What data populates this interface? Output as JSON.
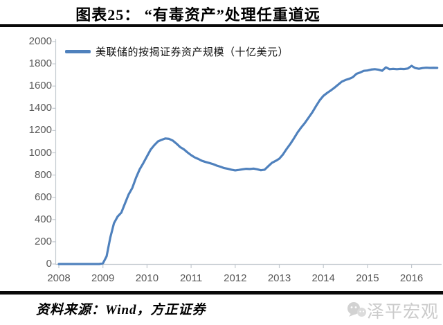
{
  "title": "图表25： “有毒资产”处理任重道远",
  "chart_data": {
    "type": "line",
    "title": "图表25： “有毒资产”处理任重道远",
    "xlabel": "",
    "ylabel": "",
    "grid": false,
    "legend_position": "top-left-inside",
    "ylim": [
      0,
      2000
    ],
    "y_tick_step": 200,
    "y_tick_labels": [
      "0",
      "200",
      "400",
      "600",
      "800",
      "1000",
      "1200",
      "1400",
      "1600",
      "1800",
      "2000"
    ],
    "x_tick_labels": [
      "2008",
      "2009",
      "2010",
      "2011",
      "2012",
      "2013",
      "2014",
      "2015",
      "2016"
    ],
    "series": [
      {
        "name": "美联储的按揭证券资产规模（十亿美元）",
        "color": "#4F81BD",
        "x": [
          2008.0,
          2008.083,
          2008.167,
          2008.25,
          2008.333,
          2008.417,
          2008.5,
          2008.583,
          2008.667,
          2008.75,
          2008.833,
          2008.917,
          2009.0,
          2009.083,
          2009.167,
          2009.25,
          2009.333,
          2009.417,
          2009.5,
          2009.583,
          2009.667,
          2009.75,
          2009.833,
          2009.917,
          2010.0,
          2010.083,
          2010.167,
          2010.25,
          2010.333,
          2010.417,
          2010.5,
          2010.583,
          2010.667,
          2010.75,
          2010.833,
          2010.917,
          2011.0,
          2011.083,
          2011.167,
          2011.25,
          2011.333,
          2011.417,
          2011.5,
          2011.583,
          2011.667,
          2011.75,
          2011.833,
          2011.917,
          2012.0,
          2012.083,
          2012.167,
          2012.25,
          2012.333,
          2012.417,
          2012.5,
          2012.583,
          2012.667,
          2012.75,
          2012.833,
          2012.917,
          2013.0,
          2013.083,
          2013.167,
          2013.25,
          2013.333,
          2013.417,
          2013.5,
          2013.583,
          2013.667,
          2013.75,
          2013.833,
          2013.917,
          2014.0,
          2014.083,
          2014.167,
          2014.25,
          2014.333,
          2014.417,
          2014.5,
          2014.583,
          2014.667,
          2014.75,
          2014.833,
          2014.917,
          2015.0,
          2015.083,
          2015.167,
          2015.25,
          2015.333,
          2015.417,
          2015.5,
          2015.583,
          2015.667,
          2015.75,
          2015.833,
          2015.917,
          2016.0,
          2016.083,
          2016.167,
          2016.25,
          2016.333,
          2016.417,
          2016.5,
          2016.583
        ],
        "values": [
          0,
          0,
          0,
          0,
          0,
          0,
          0,
          0,
          0,
          0,
          0,
          0,
          6,
          69,
          237,
          366,
          427,
          462,
          545,
          625,
          685,
          776,
          852,
          908,
          969,
          1029,
          1069,
          1103,
          1117,
          1129,
          1125,
          1110,
          1083,
          1052,
          1032,
          1004,
          979,
          958,
          944,
          927,
          917,
          908,
          898,
          885,
          875,
          862,
          856,
          848,
          842,
          846,
          852,
          856,
          854,
          858,
          852,
          843,
          848,
          880,
          910,
          927,
          947,
          985,
          1035,
          1080,
          1130,
          1185,
          1230,
          1270,
          1318,
          1365,
          1420,
          1472,
          1512,
          1538,
          1560,
          1585,
          1612,
          1640,
          1655,
          1665,
          1680,
          1710,
          1722,
          1737,
          1740,
          1748,
          1752,
          1747,
          1738,
          1768,
          1752,
          1755,
          1752,
          1755,
          1753,
          1758,
          1782,
          1762,
          1756,
          1762,
          1765,
          1763,
          1764,
          1763
        ]
      }
    ]
  },
  "footer": {
    "source": "资料来源：Wind，方正证券",
    "watermark": "泽平宏观",
    "watermark_icon": "wechat-icon"
  },
  "colors": {
    "line": "#4F81BD",
    "axis": "#c3c9cf",
    "tick_label": "#595959",
    "rule": "#0a0a0a",
    "watermark": "#cbcbcb"
  }
}
